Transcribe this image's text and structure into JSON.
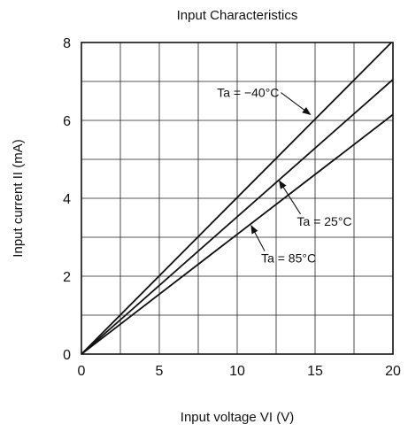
{
  "chart_data": {
    "type": "line",
    "title": "Input Characteristics",
    "xlabel": "Input voltage  VI (V)",
    "ylabel": "Input current  II (mA)",
    "xlim": [
      0,
      20
    ],
    "ylim": [
      0,
      8
    ],
    "x_ticks": [
      0,
      5,
      10,
      15,
      20
    ],
    "y_ticks": [
      0,
      2,
      4,
      6,
      8
    ],
    "x_grid_step": 2.5,
    "y_grid_step": 1,
    "grid": true,
    "series": [
      {
        "name": "Ta = −40°C",
        "x": [
          0,
          19.9
        ],
        "y": [
          0,
          8.0
        ]
      },
      {
        "name": "Ta = 25°C",
        "x": [
          0,
          20
        ],
        "y": [
          0,
          7.05
        ]
      },
      {
        "name": "Ta = 85°C",
        "x": [
          0,
          20
        ],
        "y": [
          0,
          6.15
        ]
      }
    ],
    "annotations": [
      {
        "text": "Ta = −40°C",
        "target_series": 0,
        "arrow_to": [
          14.7,
          6.15
        ],
        "label_at": [
          10.7,
          6.6
        ]
      },
      {
        "text": "Ta = 25°C",
        "target_series": 1,
        "arrow_to": [
          12.7,
          4.45
        ],
        "label_at": [
          15.6,
          3.3
        ]
      },
      {
        "text": "Ta = 85°C",
        "target_series": 2,
        "arrow_to": [
          10.9,
          3.3
        ],
        "label_at": [
          13.3,
          2.35
        ]
      }
    ]
  }
}
